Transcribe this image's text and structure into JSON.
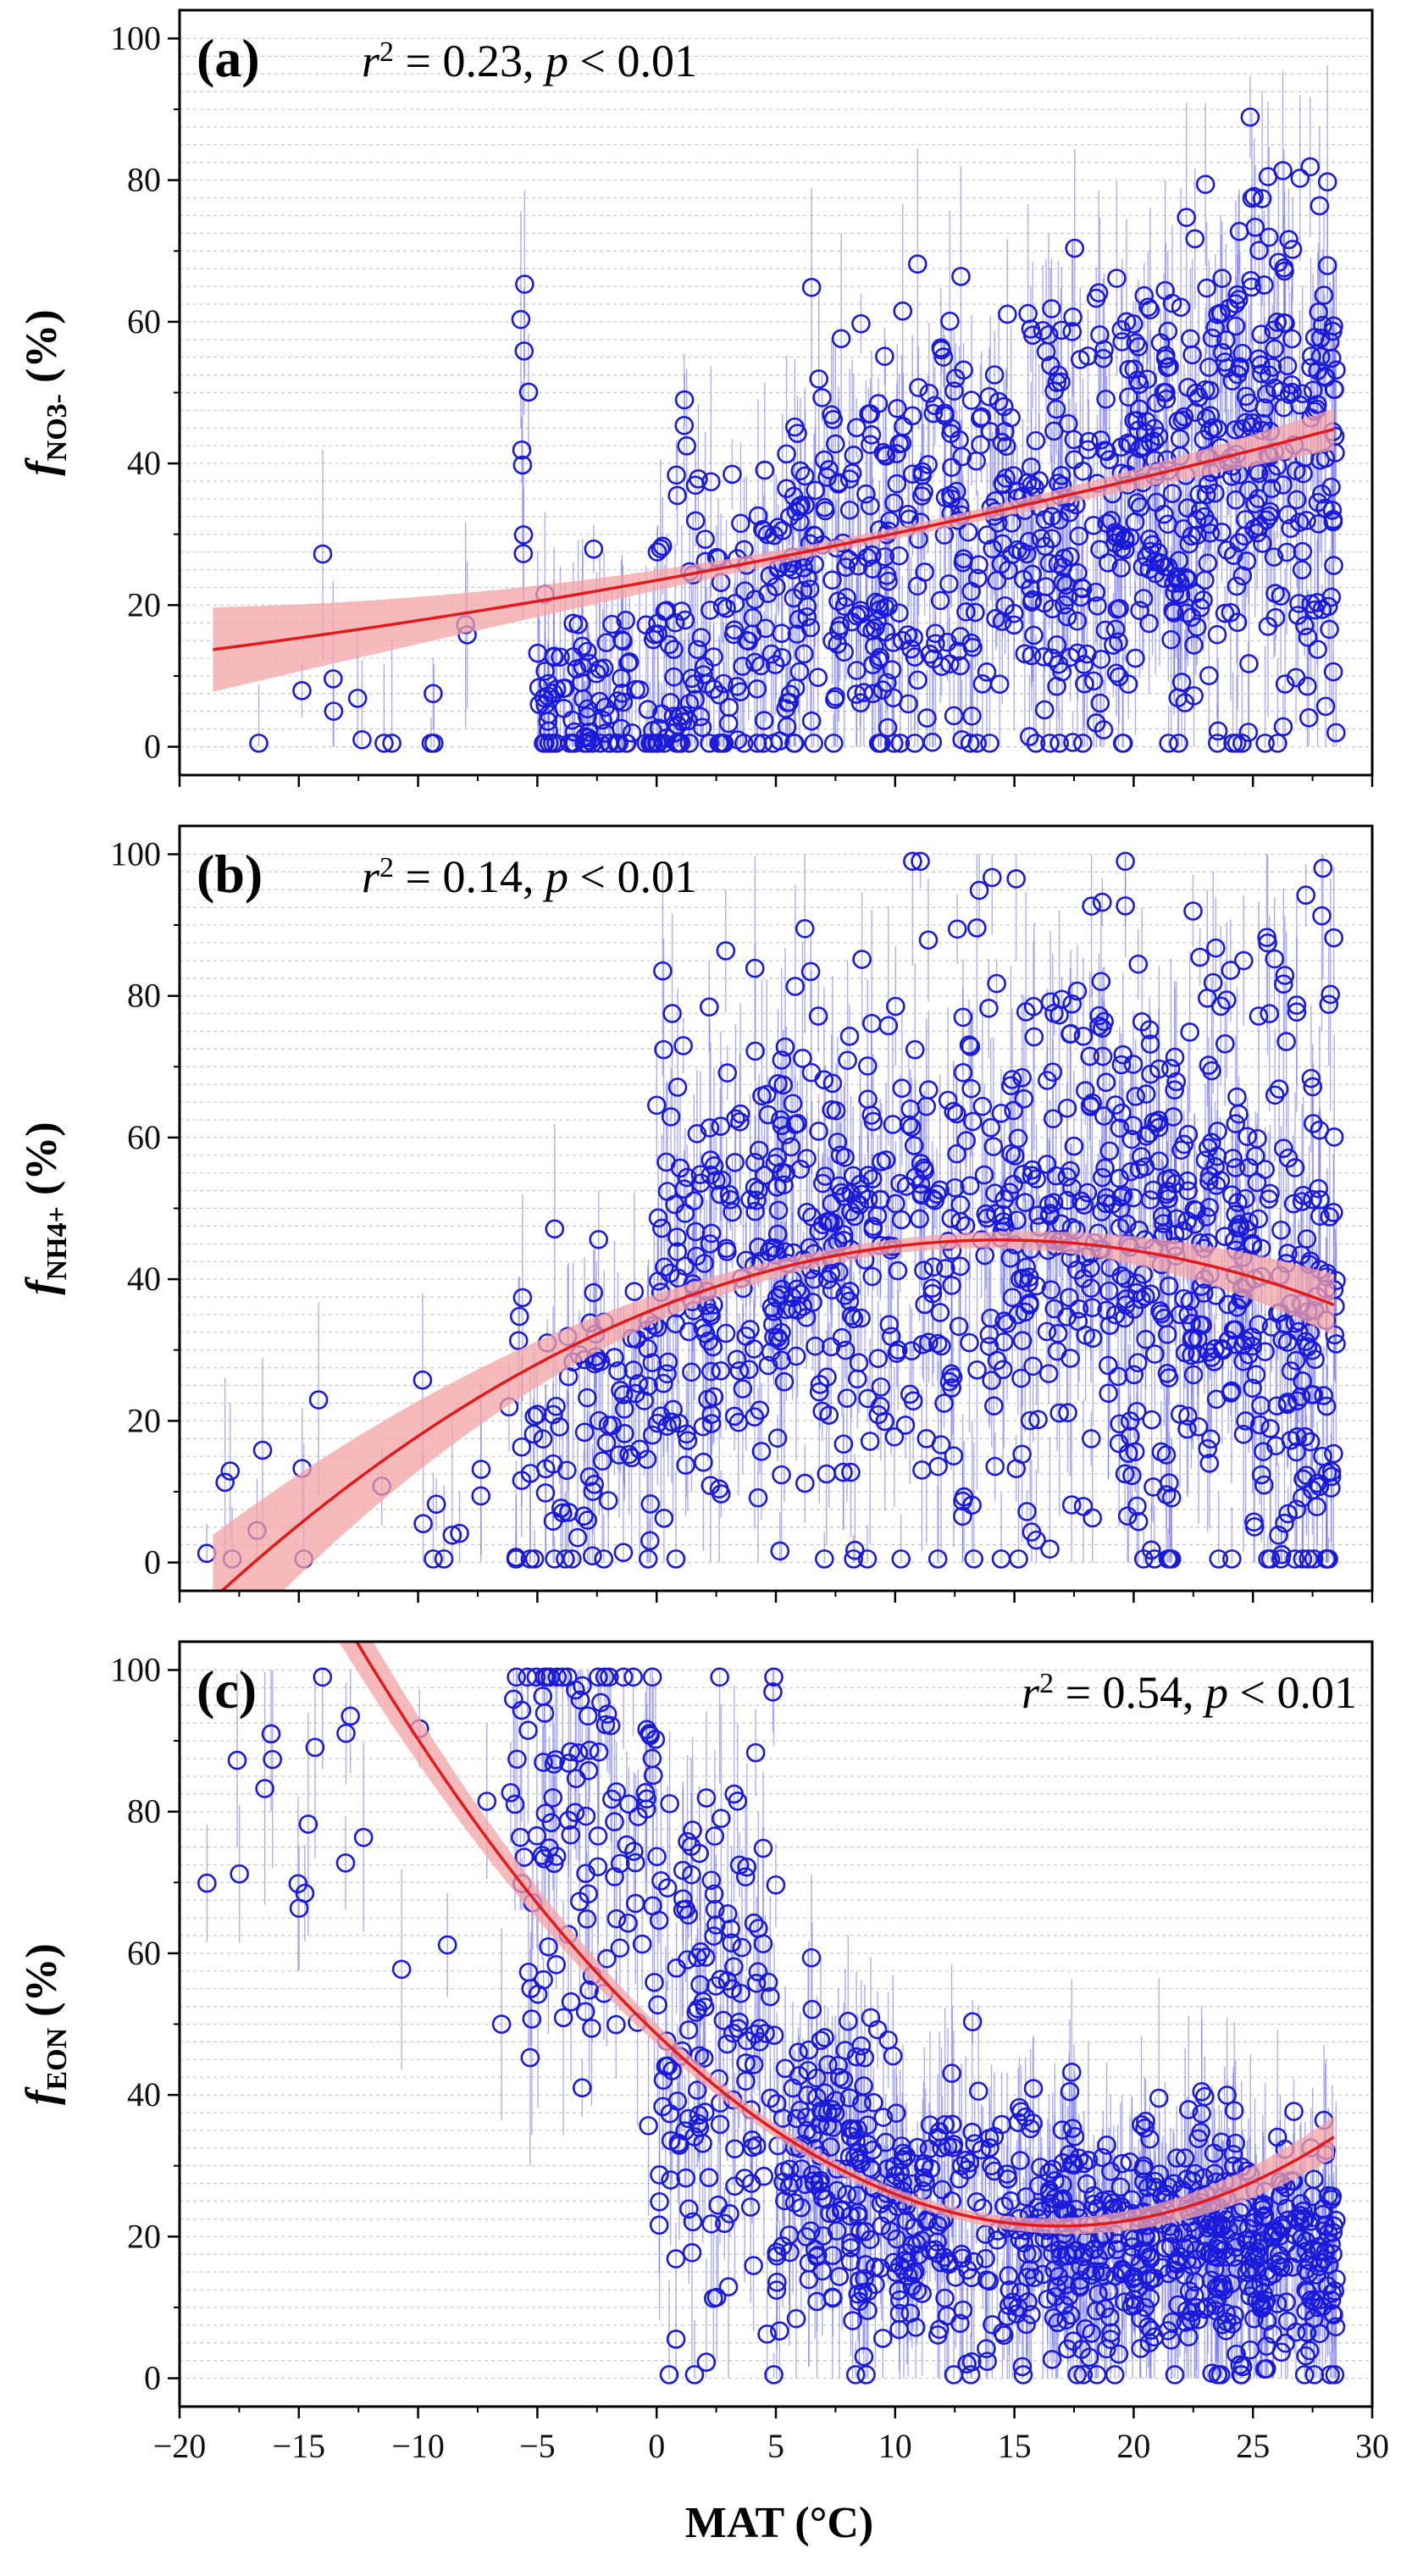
{
  "chart_data": [
    {
      "type": "scatter",
      "panel": "(a)",
      "ylabel_var": "f",
      "ylabel_sub": "NO3-",
      "ylabel_unit": " (%)",
      "stat_r": "r",
      "stat_sup": "2",
      "stat_value": " = 0.23, ",
      "stat_p": "p",
      "stat_tail": " < 0.01",
      "stat_position": "top-left",
      "xlim": [
        -20,
        30
      ],
      "ylim": [
        -4,
        104
      ],
      "yticks": [
        0,
        20,
        40,
        60,
        80,
        100
      ],
      "fit": {
        "model": "quadratic",
        "coef": [
          23.5,
          0.615,
          0.0048
        ]
      },
      "band_halfwidth": [
        4.0,
        0.8
      ],
      "seed": 11,
      "clusters": [
        {
          "n": 14,
          "xr": [
            -19,
            -6
          ],
          "mu": 8,
          "sd": 8
        },
        {
          "n": 8,
          "xr": [
            -6,
            -5
          ],
          "mu": 35,
          "sd": 22
        },
        {
          "n": 90,
          "xr": [
            -5,
            0
          ],
          "mu": 6,
          "sd": 7
        },
        {
          "n": 110,
          "xr": [
            0,
            5
          ],
          "mu": 14,
          "sd": 14
        },
        {
          "n": 150,
          "xr": [
            5,
            10
          ],
          "mu": 23,
          "sd": 16
        },
        {
          "n": 130,
          "xr": [
            10,
            15
          ],
          "mu": 28,
          "sd": 18
        },
        {
          "n": 160,
          "xr": [
            15,
            20
          ],
          "mu": 33,
          "sd": 18
        },
        {
          "n": 200,
          "xr": [
            20,
            25
          ],
          "mu": 38,
          "sd": 18
        },
        {
          "n": 140,
          "xr": [
            25,
            28.5
          ],
          "mu": 42,
          "sd": 20
        }
      ]
    },
    {
      "type": "scatter",
      "panel": "(b)",
      "ylabel_var": "f",
      "ylabel_sub": "NH4+",
      "ylabel_unit": " (%)",
      "stat_r": "r",
      "stat_sup": "2",
      "stat_value": " = 0.14, ",
      "stat_p": "p",
      "stat_tail": " < 0.01",
      "stat_position": "top-left",
      "xlim": [
        -20,
        30
      ],
      "ylim": [
        -4,
        104
      ],
      "yticks": [
        0,
        20,
        40,
        60,
        80,
        100
      ],
      "fit": {
        "model": "quadratic",
        "coef": [
          35.9,
          1.34,
          -0.0466
        ]
      },
      "band_halfwidth": [
        6.0,
        1.0
      ],
      "seed": 23,
      "clusters": [
        {
          "n": 20,
          "xr": [
            -19,
            -6
          ],
          "mu": 12,
          "sd": 10
        },
        {
          "n": 90,
          "xr": [
            -6,
            0
          ],
          "mu": 18,
          "sd": 12
        },
        {
          "n": 140,
          "xr": [
            0,
            5
          ],
          "mu": 40,
          "sd": 16
        },
        {
          "n": 160,
          "xr": [
            5,
            10
          ],
          "mu": 44,
          "sd": 18
        },
        {
          "n": 130,
          "xr": [
            10,
            15
          ],
          "mu": 46,
          "sd": 20
        },
        {
          "n": 170,
          "xr": [
            15,
            20
          ],
          "mu": 45,
          "sd": 20
        },
        {
          "n": 200,
          "xr": [
            20,
            25
          ],
          "mu": 42,
          "sd": 20
        },
        {
          "n": 140,
          "xr": [
            25,
            28.5
          ],
          "mu": 38,
          "sd": 24
        }
      ]
    },
    {
      "type": "scatter",
      "panel": "(c)",
      "ylabel_var": "f",
      "ylabel_sub": "EON",
      "ylabel_unit": " (%)",
      "stat_r": "r",
      "stat_sup": "2",
      "stat_value": " = 0.54, ",
      "stat_p": "p",
      "stat_tail": " < 0.01",
      "stat_position": "top-right",
      "xlim": [
        -20,
        30
      ],
      "ylim": [
        -4,
        104
      ],
      "yticks": [
        0,
        20,
        40,
        60,
        80,
        100
      ],
      "fit": {
        "model": "quadratic",
        "coef": [
          48.6,
          -3.21,
          0.095
        ]
      },
      "band_halfwidth": [
        4.0,
        0.8
      ],
      "seed": 37,
      "clusters": [
        {
          "n": 22,
          "xr": [
            -19,
            -6
          ],
          "mu": 75,
          "sd": 18
        },
        {
          "n": 110,
          "xr": [
            -6,
            0
          ],
          "mu": 78,
          "sd": 20
        },
        {
          "n": 140,
          "xr": [
            0,
            5
          ],
          "mu": 50,
          "sd": 20
        },
        {
          "n": 160,
          "xr": [
            5,
            10
          ],
          "mu": 28,
          "sd": 12
        },
        {
          "n": 130,
          "xr": [
            10,
            15
          ],
          "mu": 22,
          "sd": 10
        },
        {
          "n": 170,
          "xr": [
            15,
            20
          ],
          "mu": 20,
          "sd": 9
        },
        {
          "n": 200,
          "xr": [
            20,
            25
          ],
          "mu": 18,
          "sd": 9
        },
        {
          "n": 140,
          "xr": [
            25,
            28.5
          ],
          "mu": 17,
          "sd": 9
        }
      ]
    }
  ],
  "xaxis": {
    "label": "MAT (°C)",
    "ticks": [
      -20,
      -15,
      -10,
      -5,
      0,
      5,
      10,
      15,
      20,
      25,
      30
    ],
    "tick_labels": [
      "−20",
      "−15",
      "−10",
      "−5",
      "0",
      "5",
      "10",
      "15",
      "20",
      "25",
      "30"
    ]
  },
  "colors": {
    "marker": "#1a1adb",
    "errorbar": "#6b6bf0",
    "fit_line": "#e31a1c",
    "band": "#f4a3a3",
    "grid": "#c8c8c8"
  }
}
